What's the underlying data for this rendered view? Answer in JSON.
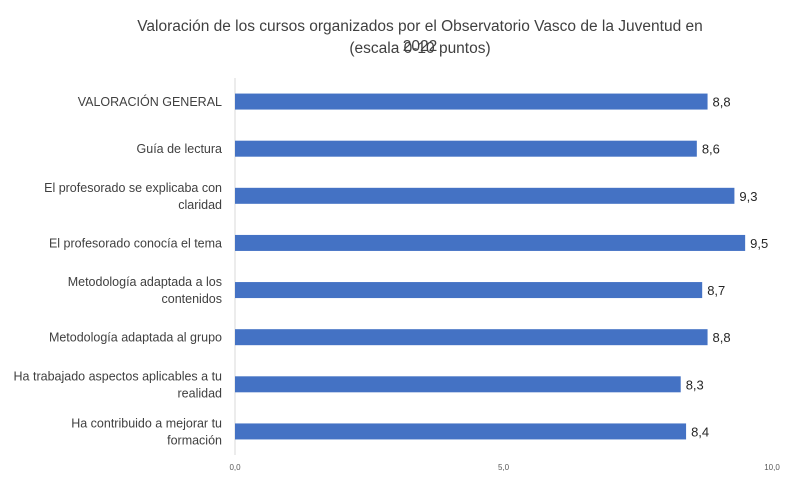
{
  "chart_data": {
    "type": "bar",
    "orientation": "horizontal",
    "title": "Valoración de los cursos organizados por el Observatorio Vasco de la Juventud en 2022",
    "subtitle": "(escala 0-10 puntos)",
    "categories": [
      [
        "VALORACIÓN GENERAL"
      ],
      [
        "Guía de lectura"
      ],
      [
        "El profesorado se explicaba con",
        "claridad"
      ],
      [
        "El profesorado conocía el tema"
      ],
      [
        "Metodología adaptada a los",
        "contenidos"
      ],
      [
        "Metodología adaptada al grupo"
      ],
      [
        "Ha trabajado aspectos aplicables a tu",
        "realidad"
      ],
      [
        "Ha contribuido a mejorar tu",
        "formación"
      ]
    ],
    "values": [
      8.8,
      8.6,
      9.3,
      9.5,
      8.7,
      8.8,
      8.3,
      8.4
    ],
    "value_labels": [
      "8,8",
      "8,6",
      "9,3",
      "9,5",
      "8,7",
      "8,8",
      "8,3",
      "8,4"
    ],
    "xlim": [
      0,
      10
    ],
    "xticks": [
      0,
      5,
      10
    ],
    "xtick_labels": [
      "0,0",
      "5,0",
      "10,0"
    ],
    "bar_color": "#4472C4",
    "axis_color": "#D9D9D9",
    "grid": false
  }
}
